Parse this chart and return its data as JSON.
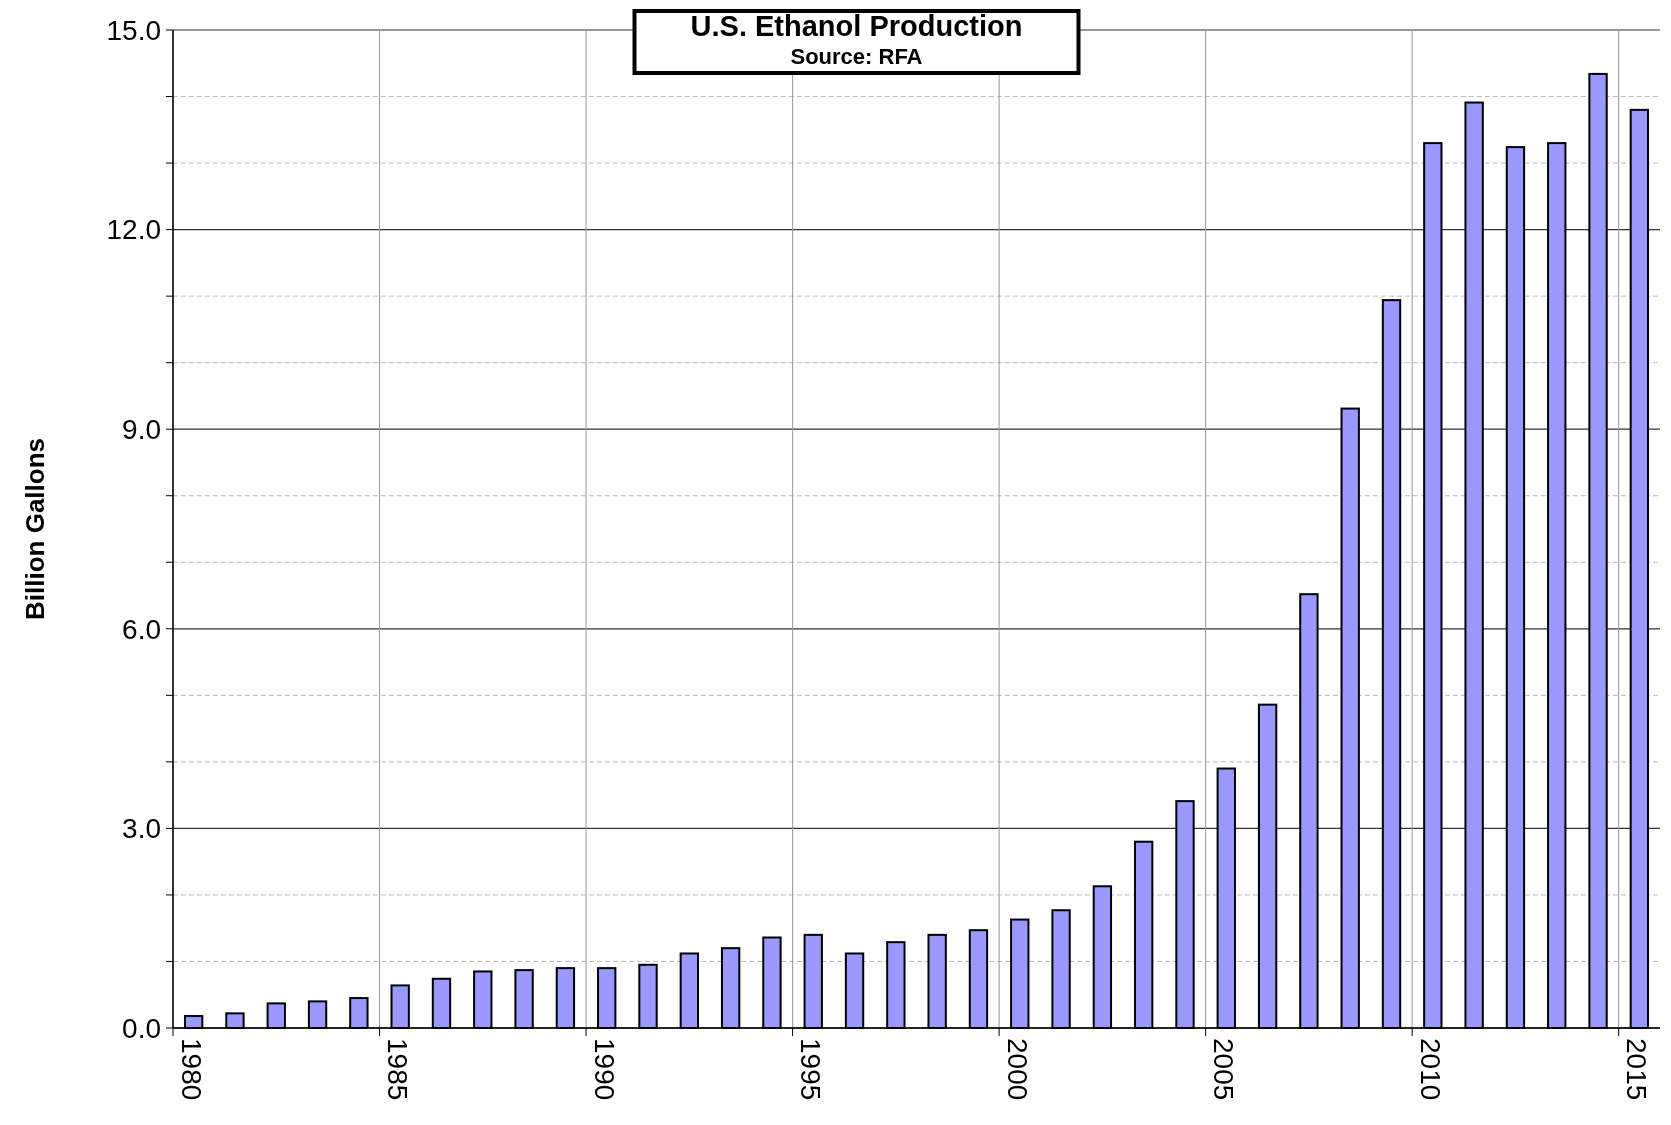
{
  "chart_data": {
    "type": "bar",
    "title": "U.S. Ethanol Production",
    "subtitle": "Source: RFA",
    "ylabel": "Billion Gallons",
    "categories": [
      "1980",
      null,
      null,
      null,
      null,
      "1985",
      null,
      null,
      null,
      null,
      "1990",
      null,
      null,
      null,
      null,
      "1995",
      null,
      null,
      null,
      null,
      "2000",
      null,
      null,
      null,
      null,
      "2005",
      null,
      null,
      null,
      null,
      "2010",
      null,
      null,
      null,
      null,
      "2015"
    ],
    "values": [
      0.18,
      0.22,
      0.37,
      0.4,
      0.45,
      0.64,
      0.74,
      0.85,
      0.87,
      0.9,
      0.9,
      0.95,
      1.12,
      1.2,
      1.36,
      1.4,
      1.12,
      1.29,
      1.4,
      1.47,
      1.63,
      1.77,
      2.13,
      2.8,
      3.41,
      3.9,
      4.86,
      6.52,
      9.31,
      10.94,
      13.3,
      13.91,
      13.24,
      13.3,
      14.34,
      13.8
    ],
    "color": "#9999ff",
    "ylim": [
      0,
      15
    ],
    "yticks": [
      {
        "value": 0,
        "label": "0.0"
      },
      {
        "value": 1,
        "label": null
      },
      {
        "value": 2,
        "label": null
      },
      {
        "value": 3,
        "label": "3.0"
      },
      {
        "value": 4,
        "label": null
      },
      {
        "value": 5,
        "label": null
      },
      {
        "value": 6,
        "label": "6.0"
      },
      {
        "value": 7,
        "label": null
      },
      {
        "value": 8,
        "label": null
      },
      {
        "value": 9,
        "label": "9.0"
      },
      {
        "value": 10,
        "label": null
      },
      {
        "value": 11,
        "label": null
      },
      {
        "value": 12,
        "label": "12.0"
      },
      {
        "value": 13,
        "label": null
      },
      {
        "value": 14,
        "label": null
      },
      {
        "value": 15,
        "label": "15.0"
      }
    ],
    "grid": true
  }
}
